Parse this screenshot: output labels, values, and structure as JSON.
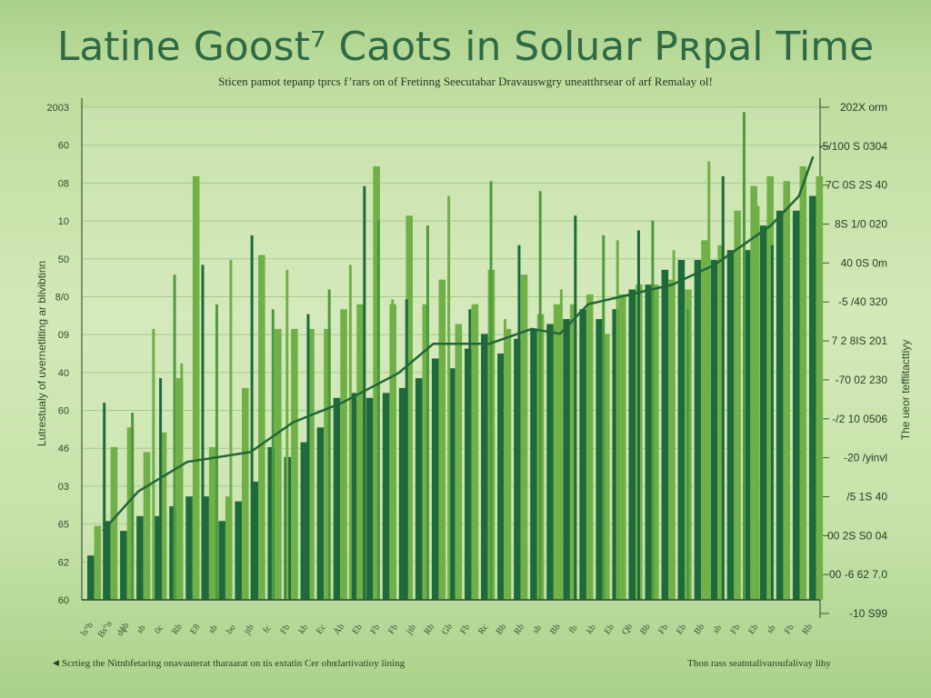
{
  "title": "Latine Goost⁷ Caots in Soluar Pʀpal Time",
  "subtitle": "Sticen pamot tepanp tprcs f’rars on of Fretinng Seecutabar Dravauswgry uneatthrsear of arf Remalay ol!",
  "footer_left": "Scrtieg the Nitnbfetaring onavauterat tharaarat on tis extatin Cer ohɶlartivatioy lining",
  "footer_right": "Thon rass seatntalivaroufalivay lihy",
  "colors": {
    "dark": "#1e6a3a",
    "light": "#6fb048",
    "mid": "#4f9a3c",
    "line": "#21653a",
    "grid": "#a6c98d"
  },
  "chart_data": {
    "type": "bar",
    "title": "Latine Goost⁷ Caots in Soluar Pʀpal Time",
    "xlabel": "",
    "ylabel": "Lutrestualy of uvernetliting ar blivibtinn",
    "y2label": "The ueor tefflitacttiyy",
    "y_ticks": [
      "2003",
      "60",
      "08",
      "10",
      "50",
      "8/0",
      "09",
      "40",
      "60",
      "46",
      "03",
      "65",
      "62",
      "60"
    ],
    "y2_ticks": [
      "202X orm",
      "-5/100 S 0304",
      "7C 0S 2S 40",
      "8S 1/0 020",
      "40 0S 0m",
      "-5 /40 320",
      "7 2 8IS 201",
      "-70 02 230",
      "-/2 10 0506",
      "-20 /yinvl",
      "/5 1S 40",
      "00 2S S0 04",
      "00 -6 62 7.0",
      "-10 S99"
    ],
    "ylim": [
      0,
      100
    ],
    "grid": true,
    "legend": "none",
    "bar_pairs": [
      [
        9,
        15
      ],
      [
        16,
        31
      ],
      [
        14,
        35
      ],
      [
        17,
        30
      ],
      [
        17,
        34
      ],
      [
        19,
        45
      ],
      [
        21,
        86
      ],
      [
        21,
        31
      ],
      [
        16,
        21
      ],
      [
        20,
        43
      ],
      [
        24,
        70
      ],
      [
        31,
        55
      ],
      [
        29,
        55
      ],
      [
        32,
        55
      ],
      [
        35,
        55
      ],
      [
        41,
        59
      ],
      [
        42,
        60
      ],
      [
        41,
        88
      ],
      [
        42,
        60
      ],
      [
        43,
        78
      ],
      [
        45,
        60
      ],
      [
        49,
        65
      ],
      [
        47,
        56
      ],
      [
        51,
        60
      ],
      [
        54,
        67
      ],
      [
        50,
        55
      ],
      [
        53,
        66
      ],
      [
        55,
        58
      ],
      [
        56,
        60
      ],
      [
        57,
        60
      ],
      [
        59,
        62
      ],
      [
        57,
        54
      ],
      [
        59,
        62
      ],
      [
        63,
        64
      ],
      [
        64,
        64
      ],
      [
        67,
        65
      ],
      [
        69,
        63
      ],
      [
        69,
        73
      ],
      [
        69,
        72
      ],
      [
        71,
        79
      ],
      [
        71,
        84
      ],
      [
        76,
        86
      ],
      [
        79,
        85
      ],
      [
        79,
        88
      ],
      [
        82,
        86
      ]
    ],
    "tall_spikes": [
      [
        3,
        40
      ],
      [
        7,
        38
      ],
      [
        10,
        55
      ],
      [
        11,
        45
      ],
      [
        13,
        66
      ],
      [
        14,
        48
      ],
      [
        17,
        68
      ],
      [
        19,
        60
      ],
      [
        21,
        69
      ],
      [
        24,
        74
      ],
      [
        27,
        59
      ],
      [
        29,
        67
      ],
      [
        32,
        58
      ],
      [
        35,
        63
      ],
      [
        38,
        68
      ],
      [
        40,
        84
      ],
      [
        42,
        77
      ],
      [
        44,
        61
      ],
      [
        46,
        61
      ],
      [
        49,
        76
      ],
      [
        52,
        82
      ],
      [
        55,
        59
      ],
      [
        58,
        85
      ],
      [
        60,
        57
      ],
      [
        62,
        72
      ],
      [
        65,
        83
      ],
      [
        68,
        63
      ],
      [
        70,
        78
      ],
      [
        74,
        74
      ],
      [
        76,
        73
      ],
      [
        79,
        75
      ],
      [
        81,
        77
      ],
      [
        84,
        71
      ],
      [
        85,
        60
      ],
      [
        86,
        59
      ],
      [
        89,
        89
      ],
      [
        91,
        86
      ],
      [
        94,
        99
      ],
      [
        96,
        80
      ],
      [
        98,
        72
      ]
    ],
    "trend_line": [
      [
        3,
        14
      ],
      [
        8,
        22
      ],
      [
        15,
        28
      ],
      [
        24,
        30
      ],
      [
        30,
        36
      ],
      [
        37,
        40
      ],
      [
        45,
        46
      ],
      [
        50,
        52
      ],
      [
        58,
        52
      ],
      [
        64,
        55
      ],
      [
        68,
        54
      ],
      [
        72,
        60
      ],
      [
        78,
        62
      ],
      [
        84,
        64
      ],
      [
        90,
        68
      ],
      [
        94,
        72
      ],
      [
        98,
        76
      ],
      [
        102,
        82
      ],
      [
        104,
        90
      ]
    ],
    "x_labels": [
      "ls°b",
      "Bs°n",
      "dɸb",
      "sb",
      "0c",
      "Rb",
      "E8",
      "sb",
      "bo",
      "jtb",
      "fc",
      "Fb",
      "kb",
      "Ec",
      "Àb",
      "Eb",
      "Fb",
      "Fb",
      "jtb",
      "Rb",
      "Gb",
      "Fb",
      "Rc",
      "Bb",
      "Rb",
      "sb",
      "Bb",
      "fb",
      "kb",
      "Eb",
      "Qb",
      "Bb",
      "Fb",
      "Eb",
      "Bb",
      "sb",
      "Fb",
      "Eb",
      "sb",
      "Fb",
      "Rb"
    ]
  }
}
